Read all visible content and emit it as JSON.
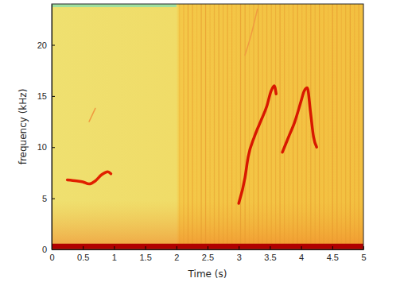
{
  "chart_data": {
    "type": "spectrogram",
    "x_label": "Time (s)",
    "y_label": "frequency (kHz)",
    "xlim": [
      0,
      5
    ],
    "xticks": [
      0,
      0.5,
      1,
      1.5,
      2,
      2.5,
      3,
      3.5,
      4,
      4.5,
      5
    ],
    "ylim": [
      0,
      24
    ],
    "yticks": [
      0,
      5,
      10,
      15,
      20
    ],
    "series": [
      {
        "color": "#b00000",
        "x": [
          0,
          5
        ],
        "values": [
          0.3,
          0.3
        ]
      },
      {
        "color": "#e02000",
        "x": [
          0.25,
          0.4,
          0.5,
          0.6,
          0.7,
          0.8,
          0.9,
          0.95
        ],
        "values": [
          6.8,
          6.7,
          6.6,
          6.4,
          6.7,
          7.3,
          7.6,
          7.4
        ]
      },
      {
        "color": "#f09a40",
        "x": [
          0.6,
          0.7
        ],
        "values": [
          12.5,
          13.8
        ]
      },
      {
        "color": "#d81800",
        "x": [
          3.0,
          3.1,
          3.15,
          3.25,
          3.35,
          3.45,
          3.52,
          3.57,
          3.6
        ],
        "values": [
          4.5,
          7,
          9,
          11,
          12.5,
          14,
          15.5,
          16,
          15.2
        ]
      },
      {
        "color": "#d81800",
        "x": [
          3.7,
          3.8,
          3.9,
          4.0,
          4.05,
          4.1,
          4.15,
          4.2,
          4.25
        ],
        "values": [
          9.5,
          11,
          12.5,
          14.5,
          15.5,
          15.8,
          13.5,
          11,
          10
        ]
      },
      {
        "color": "#f09a40",
        "x": [
          3.1,
          3.2,
          3.3
        ],
        "values": [
          19,
          21,
          23.5
        ]
      }
    ]
  }
}
